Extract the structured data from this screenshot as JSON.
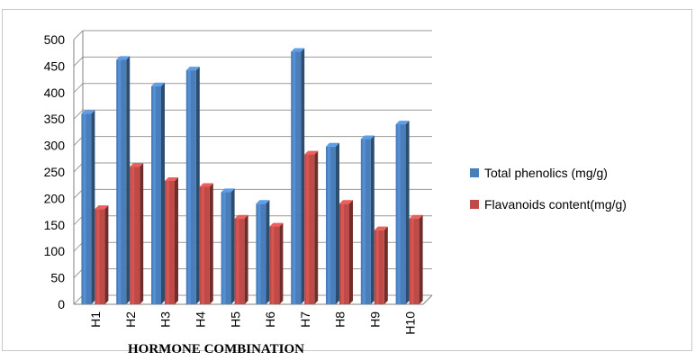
{
  "chart_data": {
    "type": "bar",
    "title": "",
    "xlabel": "HORMONE COMBINATION",
    "ylabel": "",
    "categories": [
      "H1",
      "H2",
      "H3",
      "H4",
      "H5",
      "H6",
      "H7",
      "H8",
      "H9",
      "H10"
    ],
    "ylim": [
      0,
      500
    ],
    "yticks": [
      0,
      50,
      100,
      150,
      200,
      250,
      300,
      350,
      400,
      450,
      500
    ],
    "grid": true,
    "legend_position": "right",
    "style_3d": true,
    "series": [
      {
        "name": "Total phenolics (mg/g)",
        "color": "#4a7ebb",
        "values": [
          360,
          462,
          412,
          442,
          212,
          190,
          477,
          298,
          312,
          340
        ]
      },
      {
        "name": "Flavanoids content(mg/g)",
        "color": "#be4b48",
        "values": [
          180,
          260,
          233,
          222,
          162,
          147,
          283,
          190,
          140,
          162
        ]
      }
    ]
  }
}
